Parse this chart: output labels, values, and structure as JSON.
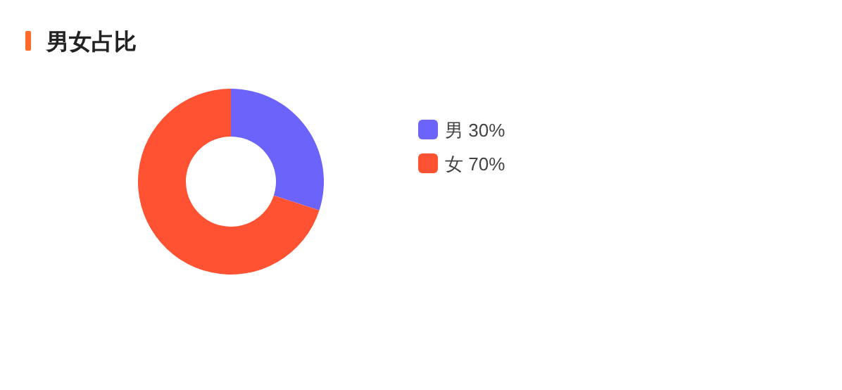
{
  "chart_data": {
    "type": "donut",
    "title": "男女占比",
    "categories": [
      "男",
      "女"
    ],
    "values": [
      30,
      70
    ],
    "value_labels": [
      "30%",
      "70%"
    ],
    "colors": [
      "#6c63fb",
      "#ff5233"
    ],
    "legend": "right"
  }
}
